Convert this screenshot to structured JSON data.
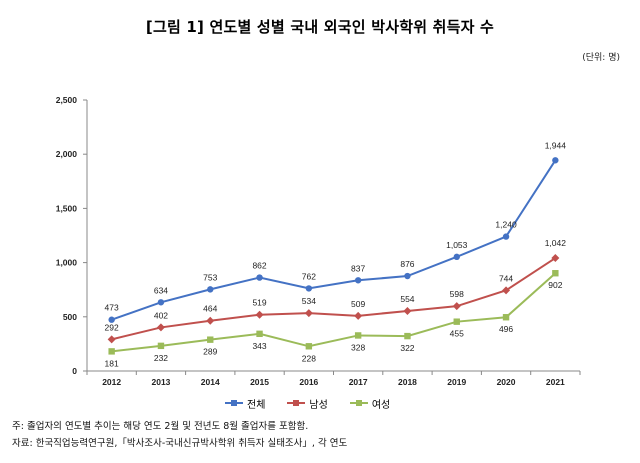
{
  "title": "[그림 1] 연도별 성별 국내 외국인 박사학위 취득자 수",
  "unit_note": "(단위: 명)",
  "chart_data": {
    "type": "line",
    "categories": [
      "2012",
      "2013",
      "2014",
      "2015",
      "2016",
      "2017",
      "2018",
      "2019",
      "2020",
      "2021"
    ],
    "y_ticks": [
      "0",
      "500",
      "1,000",
      "1,500",
      "2,000",
      "2,500"
    ],
    "ylim": [
      0,
      2500
    ],
    "grid": false,
    "legend_position": "bottom",
    "series": [
      {
        "name": "전체",
        "color": "#4472C4",
        "values": [
          473,
          634,
          753,
          862,
          762,
          837,
          876,
          1053,
          1240,
          1944
        ],
        "labels": [
          "473",
          "634",
          "753",
          "862",
          "762",
          "837",
          "876",
          "1,053",
          "1,240",
          "1,944"
        ]
      },
      {
        "name": "남성",
        "color": "#C0504D",
        "values": [
          292,
          402,
          464,
          519,
          534,
          509,
          554,
          598,
          744,
          1042
        ],
        "labels": [
          "292",
          "402",
          "464",
          "519",
          "534",
          "509",
          "554",
          "598",
          "744",
          "1,042"
        ]
      },
      {
        "name": "여성",
        "color": "#9BBB59",
        "values": [
          181,
          232,
          289,
          343,
          228,
          328,
          322,
          455,
          496,
          902
        ],
        "labels": [
          "181",
          "232",
          "289",
          "343",
          "228",
          "328",
          "322",
          "455",
          "496",
          "902"
        ]
      }
    ]
  },
  "notes": {
    "note": "주: 졸업자의 연도별 추이는 해당 연도 2월 및 전년도 8월 졸업자를 포함함.",
    "source": "자료: 한국직업능력연구원,「박사조사-국내신규박사학위 취득자 실태조사」, 각 연도"
  }
}
